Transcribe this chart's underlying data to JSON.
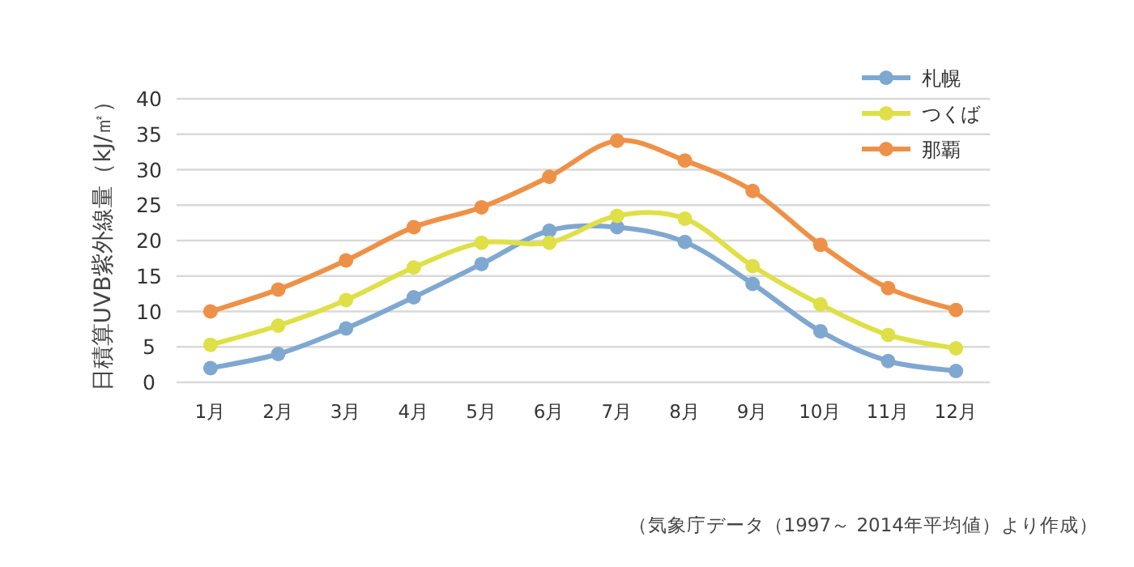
{
  "chart_data": {
    "type": "line",
    "ylabel": "日積算UVB紫外線量（kJ/㎡）",
    "categories": [
      "1月",
      "2月",
      "3月",
      "4月",
      "5月",
      "6月",
      "7月",
      "8月",
      "9月",
      "10月",
      "11月",
      "12月"
    ],
    "series": [
      {
        "name": "札幌",
        "color": "#7fa8d1",
        "values": [
          2.0,
          4.0,
          7.6,
          12.0,
          16.7,
          21.4,
          21.9,
          19.8,
          13.9,
          7.2,
          3.0,
          1.6
        ]
      },
      {
        "name": "つくば",
        "color": "#dfe047",
        "values": [
          5.3,
          8.0,
          11.6,
          16.2,
          19.7,
          19.7,
          23.5,
          23.1,
          16.4,
          11.0,
          6.7,
          4.8
        ]
      },
      {
        "name": "那覇",
        "color": "#ee9148",
        "values": [
          10.0,
          13.1,
          17.2,
          21.9,
          24.7,
          29.0,
          34.1,
          31.3,
          27.0,
          19.4,
          13.3,
          10.2
        ]
      }
    ],
    "ylim": [
      0,
      40
    ],
    "yticks": [
      0,
      5,
      10,
      15,
      20,
      25,
      30,
      35,
      40
    ],
    "grid": "y",
    "legend": "top right",
    "marker": "circle",
    "line_style": "solid",
    "annotations": [
      "（気象庁データ（1997～ 2014年平均値）より作成）"
    ]
  }
}
